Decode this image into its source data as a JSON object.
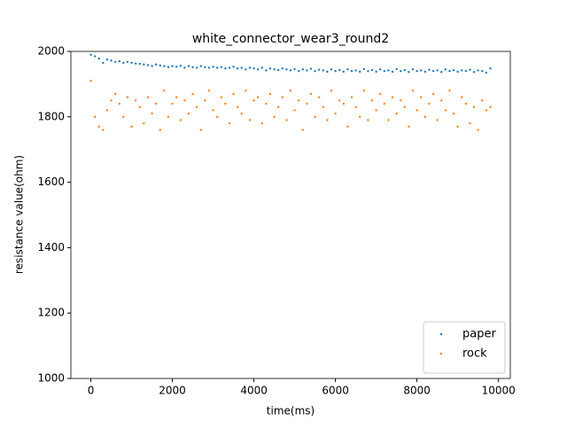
{
  "chart_data": {
    "type": "scatter",
    "title": "white_connector_wear3_round2",
    "xlabel": "time(ms)",
    "ylabel": "resistance value(ohm)",
    "x": [
      0,
      100,
      200,
      300,
      400,
      500,
      600,
      700,
      800,
      900,
      1000,
      1100,
      1200,
      1300,
      1400,
      1500,
      1600,
      1700,
      1800,
      1900,
      2000,
      2100,
      2200,
      2300,
      2400,
      2500,
      2600,
      2700,
      2800,
      2900,
      3000,
      3100,
      3200,
      3300,
      3400,
      3500,
      3600,
      3700,
      3800,
      3900,
      4000,
      4100,
      4200,
      4300,
      4400,
      4500,
      4600,
      4700,
      4800,
      4900,
      5000,
      5100,
      5200,
      5300,
      5400,
      5500,
      5600,
      5700,
      5800,
      5900,
      6000,
      6100,
      6200,
      6300,
      6400,
      6500,
      6600,
      6700,
      6800,
      6900,
      7000,
      7100,
      7200,
      7300,
      7400,
      7500,
      7600,
      7700,
      7800,
      7900,
      8000,
      8100,
      8200,
      8300,
      8400,
      8500,
      8600,
      8700,
      8800,
      8900,
      9000,
      9100,
      9200,
      9300,
      9400,
      9500,
      9600,
      9700,
      9800
    ],
    "series": [
      {
        "name": "paper",
        "color": "#1f77b4",
        "values": [
          1990,
          1985,
          1978,
          1965,
          1975,
          1972,
          1968,
          1970,
          1965,
          1968,
          1965,
          1963,
          1962,
          1960,
          1958,
          1955,
          1960,
          1957,
          1955,
          1952,
          1955,
          1953,
          1956,
          1950,
          1955,
          1952,
          1950,
          1955,
          1952,
          1950,
          1953,
          1950,
          1952,
          1948,
          1950,
          1953,
          1948,
          1950,
          1945,
          1950,
          1948,
          1945,
          1950,
          1942,
          1948,
          1945,
          1943,
          1948,
          1945,
          1942,
          1946,
          1940,
          1945,
          1942,
          1947,
          1940,
          1944,
          1942,
          1938,
          1945,
          1940,
          1943,
          1938,
          1945,
          1940,
          1942,
          1938,
          1946,
          1940,
          1943,
          1938,
          1945,
          1940,
          1942,
          1938,
          1946,
          1940,
          1943,
          1937,
          1945,
          1940,
          1942,
          1938,
          1944,
          1940,
          1942,
          1937,
          1945,
          1940,
          1943,
          1938,
          1942,
          1940,
          1944,
          1937,
          1942,
          1940,
          1935,
          1948
        ]
      },
      {
        "name": "rock",
        "color": "#ff7f0e",
        "values": [
          1910,
          1800,
          1770,
          1760,
          1820,
          1850,
          1870,
          1840,
          1800,
          1860,
          1770,
          1850,
          1830,
          1780,
          1860,
          1810,
          1840,
          1760,
          1880,
          1800,
          1840,
          1860,
          1790,
          1850,
          1810,
          1870,
          1830,
          1760,
          1850,
          1880,
          1820,
          1800,
          1860,
          1840,
          1780,
          1870,
          1830,
          1810,
          1880,
          1790,
          1850,
          1860,
          1780,
          1840,
          1870,
          1800,
          1830,
          1860,
          1790,
          1880,
          1820,
          1850,
          1760,
          1840,
          1870,
          1800,
          1860,
          1830,
          1790,
          1880,
          1810,
          1850,
          1840,
          1770,
          1860,
          1830,
          1800,
          1880,
          1790,
          1850,
          1820,
          1870,
          1840,
          1790,
          1860,
          1810,
          1850,
          1830,
          1770,
          1880,
          1820,
          1860,
          1800,
          1840,
          1870,
          1790,
          1850,
          1820,
          1880,
          1810,
          1770,
          1860,
          1840,
          1780,
          1830,
          1760,
          1850,
          1820,
          1830
        ]
      }
    ],
    "xlim": [
      -490,
      10290
    ],
    "ylim": [
      1000,
      2000
    ],
    "xticks": [
      0,
      2000,
      4000,
      6000,
      8000,
      10000
    ],
    "yticks": [
      1000,
      1200,
      1400,
      1600,
      1800,
      2000
    ],
    "legend": "lower right"
  }
}
